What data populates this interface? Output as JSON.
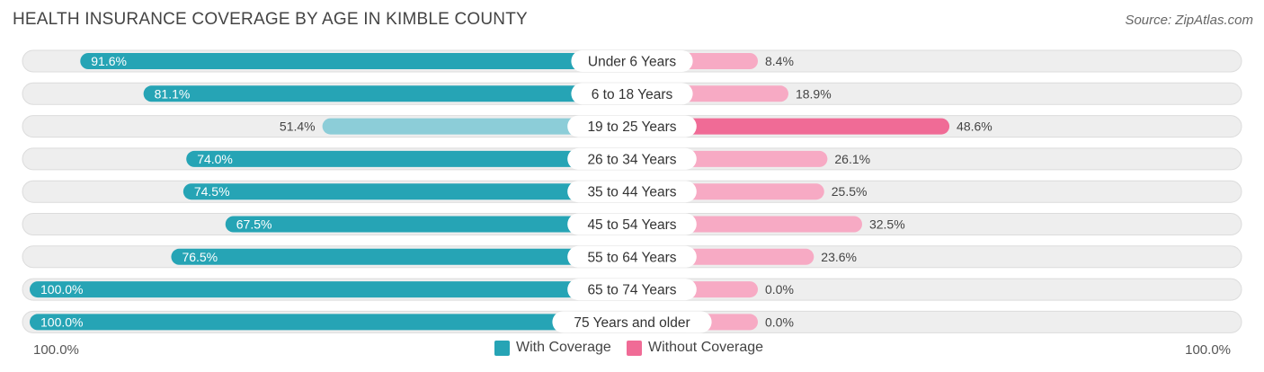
{
  "header": {
    "title": "HEALTH INSURANCE COVERAGE BY AGE IN KIMBLE COUNTY",
    "source": "Source: ZipAtlas.com"
  },
  "chart_data": {
    "type": "bar",
    "title": "HEALTH INSURANCE COVERAGE BY AGE IN KIMBLE COUNTY",
    "categories": [
      "Under 6 Years",
      "6 to 18 Years",
      "19 to 25 Years",
      "26 to 34 Years",
      "35 to 44 Years",
      "45 to 54 Years",
      "55 to 64 Years",
      "65 to 74 Years",
      "75 Years and older"
    ],
    "series": [
      {
        "name": "With Coverage",
        "values": [
          91.6,
          81.1,
          51.4,
          74.0,
          74.5,
          67.5,
          76.5,
          100.0,
          100.0
        ],
        "labels": [
          "91.6%",
          "81.1%",
          "51.4%",
          "74.0%",
          "74.5%",
          "67.5%",
          "76.5%",
          "100.0%",
          "100.0%"
        ]
      },
      {
        "name": "Without Coverage",
        "values": [
          8.4,
          18.9,
          48.6,
          26.1,
          25.5,
          32.5,
          23.6,
          0.0,
          0.0
        ],
        "labels": [
          "8.4%",
          "18.9%",
          "48.6%",
          "26.1%",
          "25.5%",
          "32.5%",
          "23.6%",
          "0.0%",
          "0.0%"
        ]
      }
    ],
    "xlim": [
      -100,
      100
    ],
    "axis_labels": {
      "left": "100.0%",
      "right": "100.0%"
    },
    "legend": [
      "With Coverage",
      "Without Coverage"
    ],
    "legend_position": "bottom-center"
  },
  "colors": {
    "with_strong": "#26a4b5",
    "with_light": "#8ccdd8",
    "without_strong": "#f06b96",
    "without_light": "#f7aac4",
    "track": "#eeeeee",
    "track_border": "#dcdcdc"
  }
}
